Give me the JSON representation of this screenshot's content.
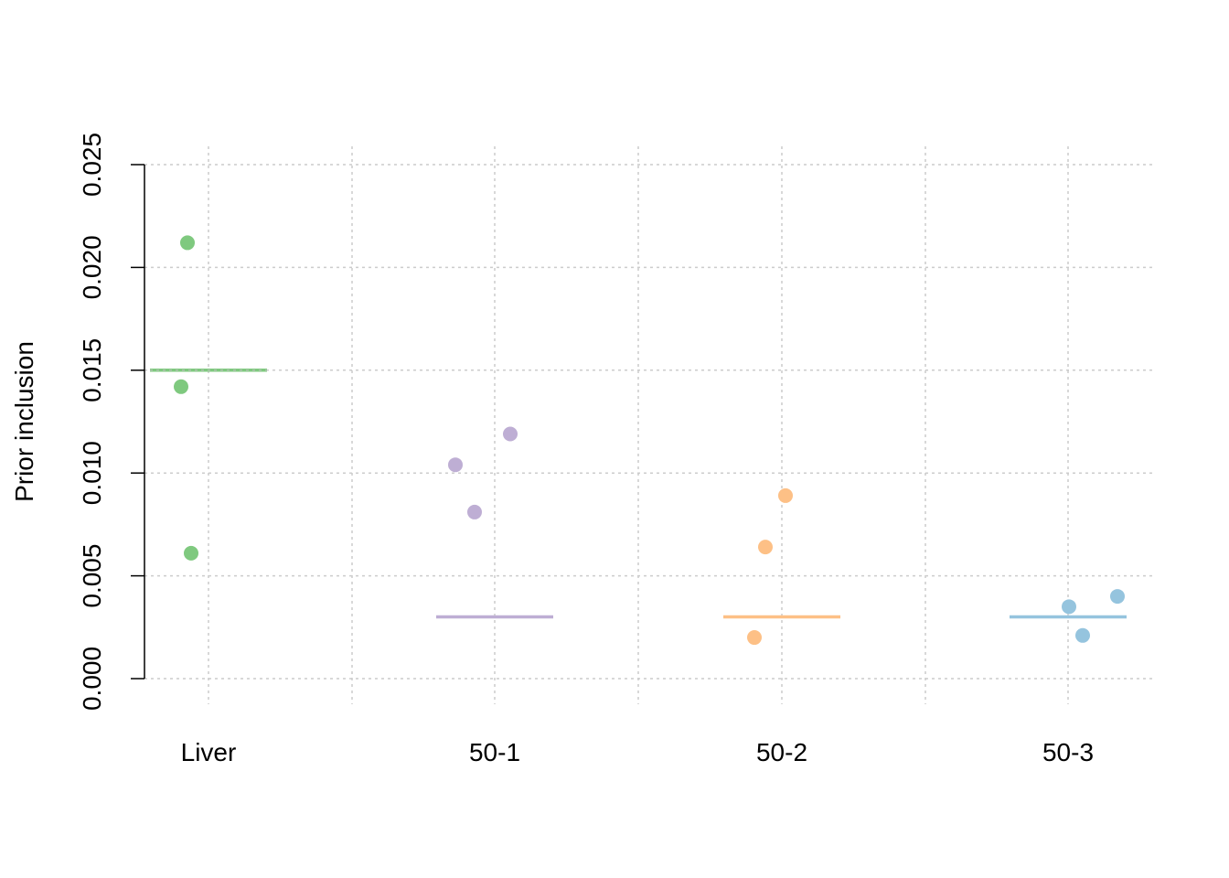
{
  "chart_data": {
    "type": "scatter",
    "title": "",
    "xlabel": "",
    "ylabel": "Prior inclusion",
    "ylim": [
      0,
      0.025
    ],
    "yticks": [
      "0.000",
      "0.005",
      "0.010",
      "0.015",
      "0.020",
      "0.025"
    ],
    "categories": [
      "Liver",
      "50-1",
      "50-2",
      "50-3"
    ],
    "grid": true,
    "series": [
      {
        "category": "Liver",
        "color": "#7fc97f",
        "values": [
          0.0212,
          0.0142,
          0.0061
        ],
        "reference": 0.015,
        "reference_dotted": true
      },
      {
        "category": "50-1",
        "color": "#beaed4",
        "values": [
          0.0104,
          0.0119,
          0.0081
        ],
        "reference": 0.003,
        "reference_dotted": false
      },
      {
        "category": "50-2",
        "color": "#fdc086",
        "values": [
          0.0089,
          0.0064,
          0.002
        ],
        "reference": 0.003,
        "reference_dotted": false
      },
      {
        "category": "50-3",
        "color": "#95c4de",
        "values": [
          0.0035,
          0.0021,
          0.004
        ],
        "reference": 0.003,
        "reference_dotted": false
      }
    ]
  }
}
